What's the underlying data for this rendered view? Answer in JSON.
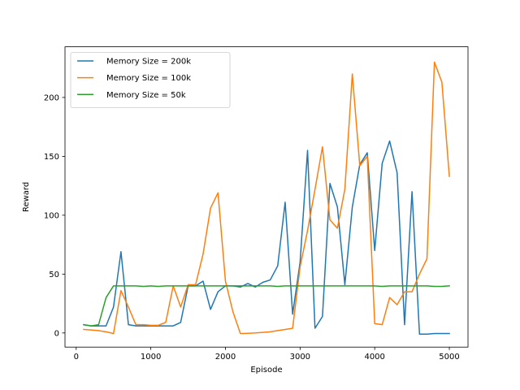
{
  "chart_data": {
    "type": "line",
    "xlabel": "Episode",
    "ylabel": "Reward",
    "xlim": [
      -150,
      5250
    ],
    "ylim": [
      -12,
      243
    ],
    "xticks": [
      0,
      1000,
      2000,
      3000,
      4000,
      5000
    ],
    "yticks": [
      0,
      50,
      100,
      150,
      200
    ],
    "grid": false,
    "legend_position": "top-left",
    "series": [
      {
        "name": "Memory Size = 200k",
        "color": "#1f77b4",
        "x": [
          100,
          200,
          300,
          400,
          500,
          600,
          700,
          800,
          900,
          1000,
          1100,
          1200,
          1300,
          1400,
          1500,
          1600,
          1700,
          1800,
          1900,
          2000,
          2100,
          2200,
          2300,
          2400,
          2500,
          2600,
          2700,
          2800,
          2900,
          3000,
          3100,
          3200,
          3300,
          3400,
          3500,
          3600,
          3700,
          3800,
          3900,
          4000,
          4100,
          4200,
          4300,
          4400,
          4500,
          4600,
          4700,
          4800,
          4900,
          5000
        ],
        "y": [
          7,
          6,
          6,
          6,
          22,
          69,
          7,
          6,
          6,
          6,
          6,
          6,
          6,
          9,
          40,
          40,
          44,
          20,
          35,
          40,
          40,
          39,
          42,
          39,
          43,
          45,
          57,
          111,
          16,
          60,
          155,
          4,
          14,
          127,
          107,
          41,
          107,
          143,
          153,
          70,
          144,
          163,
          136,
          7,
          120,
          -1,
          -1,
          -0.5,
          -0.5,
          -0.5
        ]
      },
      {
        "name": "Memory Size = 100k",
        "color": "#ff7f0e",
        "x": [
          100,
          200,
          300,
          400,
          500,
          600,
          700,
          800,
          900,
          1000,
          1100,
          1200,
          1300,
          1400,
          1500,
          1600,
          1700,
          1800,
          1900,
          2000,
          2100,
          2200,
          2300,
          2400,
          2500,
          2600,
          2700,
          2800,
          2900,
          3000,
          3100,
          3200,
          3300,
          3400,
          3500,
          3600,
          3700,
          3800,
          3900,
          4000,
          4100,
          4200,
          4300,
          4400,
          4500,
          4600,
          4700,
          4800,
          4900,
          5000
        ],
        "y": [
          3,
          2.5,
          2,
          1,
          -0.5,
          36,
          22,
          7,
          7,
          6.5,
          6.5,
          9,
          40,
          22,
          41,
          41,
          67,
          106,
          119,
          44,
          18,
          -0.5,
          -0.3,
          0,
          0.5,
          1,
          2,
          3,
          4,
          56,
          87,
          122,
          158,
          96,
          89,
          122,
          220,
          142,
          150,
          8,
          7,
          30,
          24,
          35,
          35,
          50,
          63,
          230,
          213,
          133
        ]
      },
      {
        "name": "Memory Size = 50k",
        "color": "#2ca02c",
        "x": [
          100,
          200,
          300,
          400,
          500,
          600,
          700,
          800,
          900,
          1000,
          1100,
          1200,
          1300,
          1400,
          1500,
          1600,
          1700,
          1800,
          1900,
          2000,
          2100,
          2200,
          2300,
          2400,
          2500,
          2600,
          2700,
          2800,
          2900,
          3000,
          3100,
          3200,
          3300,
          3400,
          3500,
          3600,
          3700,
          3800,
          3900,
          4000,
          4100,
          4200,
          4300,
          4400,
          4500,
          4600,
          4700,
          4800,
          4900,
          5000
        ],
        "y": [
          7,
          6,
          7,
          30,
          40,
          40,
          40,
          40,
          39.5,
          40,
          39.5,
          40,
          40,
          40,
          40,
          40,
          40,
          40,
          40,
          40,
          40,
          40,
          40,
          40,
          40,
          40,
          39.5,
          40,
          40,
          40,
          40,
          40,
          40,
          40,
          40,
          40,
          40,
          40,
          40,
          40,
          39.5,
          40,
          40,
          40,
          40,
          40,
          40,
          39.5,
          39.5,
          40
        ]
      }
    ]
  }
}
